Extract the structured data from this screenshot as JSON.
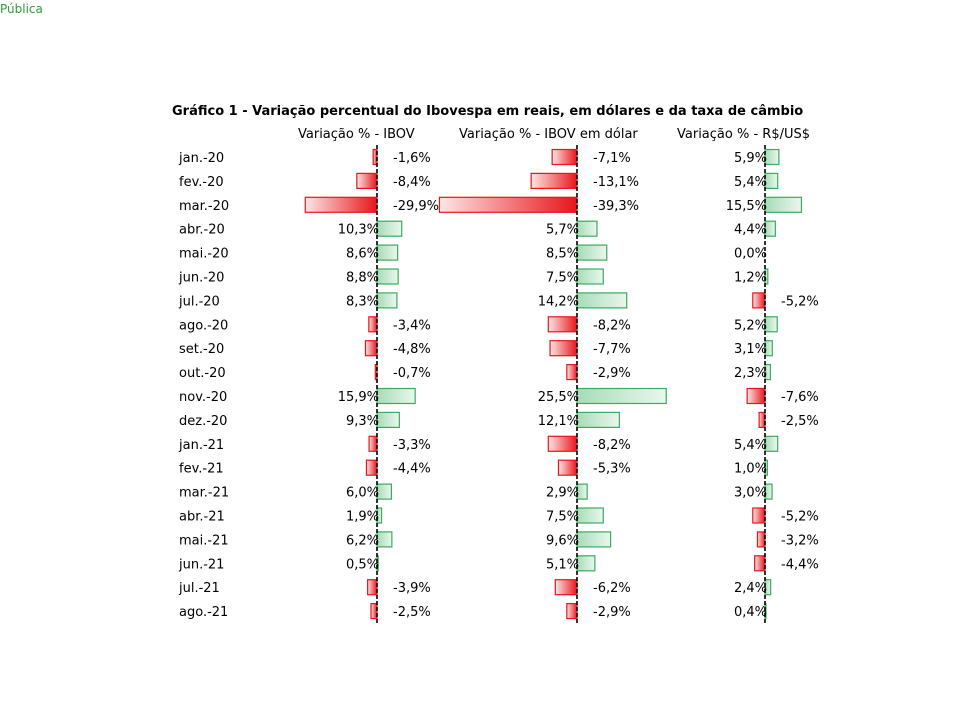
{
  "classification": "Pública",
  "colors": {
    "negative": "#e8141b",
    "negative_light": "#fde6e6",
    "positive": "#3daa5f",
    "positive_light": "#e4f5ea",
    "classification": "#2e9f3a"
  },
  "chart_data": {
    "type": "bar",
    "orientation": "horizontal",
    "title": "Gráfico 1 - Variação percentual do Ibovespa em reais, em dólares e da taxa de câmbio",
    "grid": false,
    "categories": [
      "jan.-20",
      "fev.-20",
      "mar.-20",
      "abr.-20",
      "mai.-20",
      "jun.-20",
      "jul.-20",
      "ago.-20",
      "set.-20",
      "out.-20",
      "nov.-20",
      "dez.-20",
      "jan.-21",
      "fev.-21",
      "mar.-21",
      "abr.-21",
      "mai.-21",
      "jun.-21",
      "jul.-21",
      "ago.-21"
    ],
    "series": [
      {
        "name": "Variação % - IBOV",
        "values": [
          -1.6,
          -8.4,
          -29.9,
          10.3,
          8.6,
          8.8,
          8.3,
          -3.4,
          -4.8,
          -0.7,
          15.9,
          9.3,
          -3.3,
          -4.4,
          6.0,
          1.9,
          6.2,
          0.5,
          -3.9,
          -2.5
        ],
        "labels": [
          "-1,6%",
          "-8,4%",
          "-29,9%",
          "10,3%",
          "8,6%",
          "8,8%",
          "8,3%",
          "-3,4%",
          "-4,8%",
          "-0,7%",
          "15,9%",
          "9,3%",
          "-3,3%",
          "-4,4%",
          "6,0%",
          "1,9%",
          "6,2%",
          "0,5%",
          "-3,9%",
          "-2,5%"
        ]
      },
      {
        "name": "Variação % - IBOV em dólar",
        "values": [
          -7.1,
          -13.1,
          -39.3,
          5.7,
          8.5,
          7.5,
          14.2,
          -8.2,
          -7.7,
          -2.9,
          25.5,
          12.1,
          -8.2,
          -5.3,
          2.9,
          7.5,
          9.6,
          5.1,
          -6.2,
          -2.9
        ],
        "labels": [
          "-7,1%",
          "-13,1%",
          "-39,3%",
          "5,7%",
          "8,5%",
          "7,5%",
          "14,2%",
          "-8,2%",
          "-7,7%",
          "-2,9%",
          "25,5%",
          "12,1%",
          "-8,2%",
          "-5,3%",
          "2,9%",
          "7,5%",
          "9,6%",
          "5,1%",
          "-6,2%",
          "-2,9%"
        ]
      },
      {
        "name": "Variação % - R$/US$",
        "values": [
          5.9,
          5.4,
          15.5,
          4.4,
          0.0,
          1.2,
          -5.2,
          5.2,
          3.1,
          2.3,
          -7.6,
          -2.5,
          5.4,
          1.0,
          3.0,
          -5.2,
          -3.2,
          -4.4,
          2.4,
          0.4
        ],
        "labels": [
          "5,9%",
          "5,4%",
          "15,5%",
          "4,4%",
          "0,0%",
          "1,2%",
          "-5,2%",
          "5,2%",
          "3,1%",
          "2,3%",
          "-7,6%",
          "-2,5%",
          "5,4%",
          "1,0%",
          "3,0%",
          "-5,2%",
          "-3,2%",
          "-4,4%",
          "2,4%",
          "0,4%"
        ]
      }
    ]
  }
}
